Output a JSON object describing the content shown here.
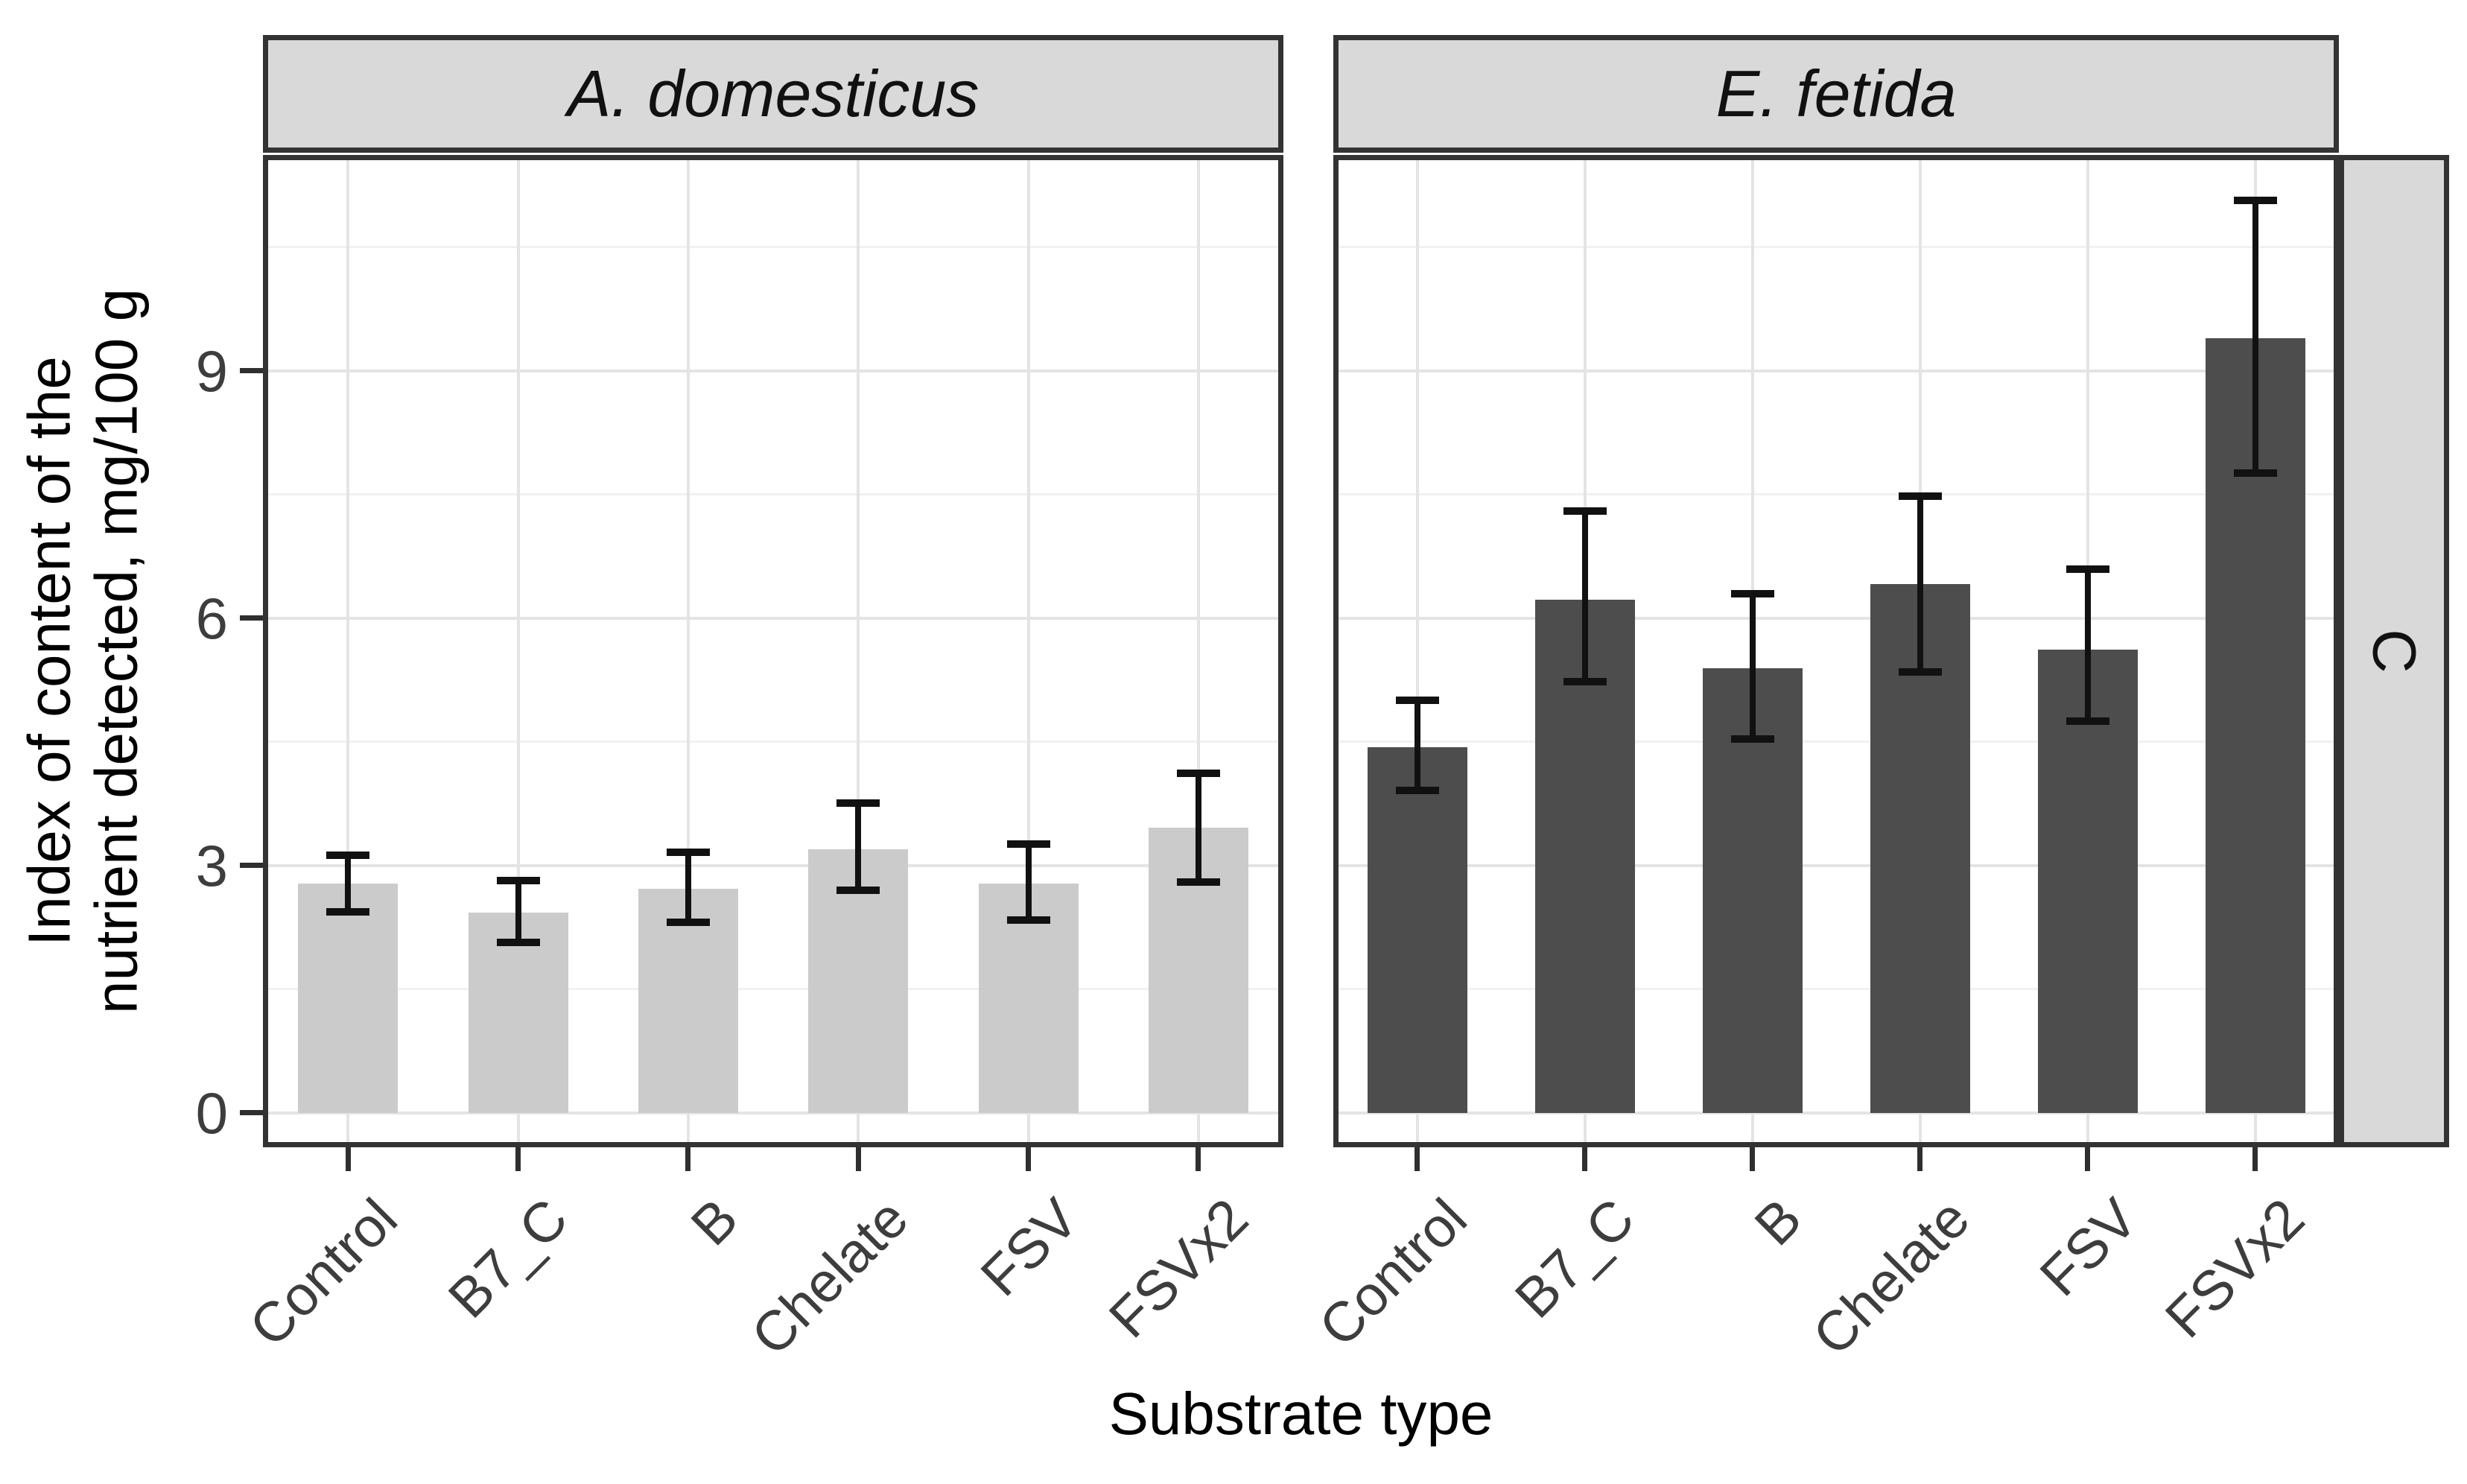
{
  "chart_data": {
    "type": "bar",
    "title": "",
    "xlabel": "Substrate type",
    "ylabel": "Index of content of the nutrient detected, mg/100 g",
    "ylabel_lines": [
      "Index of content of the",
      "nutrient detected, mg/100 g"
    ],
    "right_strip_label": "C",
    "categories": [
      "Control",
      "B7_C",
      "B",
      "Chelate",
      "FSV",
      "FSVx2"
    ],
    "yticks": [
      0,
      3,
      6,
      9
    ],
    "ytick_labels": [
      "0",
      "3",
      "6",
      "9"
    ],
    "minor_yticks": [
      1.5,
      4.5,
      7.5,
      10.5
    ],
    "ylim": [
      -0.42,
      11.62
    ],
    "grid": "horizontal major+minor, vertical major at category centers",
    "legend": "none",
    "error_bars": true,
    "facets": [
      {
        "label": "A. domesticus",
        "bar_color": "#cbcbcb",
        "values": [
          2.78,
          2.43,
          2.72,
          3.2,
          2.78,
          3.46
        ],
        "err_low": [
          2.44,
          2.07,
          2.31,
          2.7,
          2.34,
          2.8
        ],
        "err_high": [
          3.12,
          2.82,
          3.16,
          3.76,
          3.26,
          4.12
        ]
      },
      {
        "label": "E. fetida",
        "bar_color": "#4d4d4d",
        "values": [
          4.43,
          6.22,
          5.39,
          6.41,
          5.62,
          9.4
        ],
        "err_low": [
          3.91,
          5.23,
          4.53,
          5.35,
          4.75,
          7.76
        ],
        "err_high": [
          5.0,
          7.3,
          6.3,
          7.48,
          6.59,
          11.07
        ]
      }
    ],
    "colors": {
      "bar_light": "#cbcbcb",
      "bar_dark": "#4d4d4d",
      "strip_background": "#d9d9d9",
      "panel_border": "#333333",
      "grid_major": "#e4e4e4",
      "grid_minor": "#f1f1f1",
      "error_bar": "#111111",
      "tick_label": "#3d3d3d",
      "axis_title": "#000000"
    }
  }
}
